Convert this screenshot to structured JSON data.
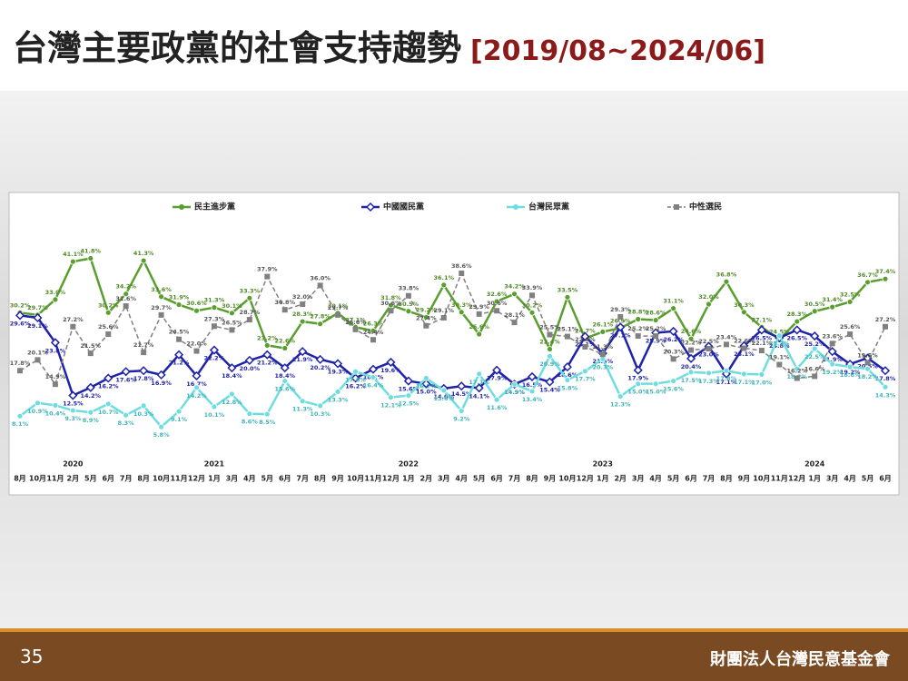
{
  "header": {
    "title": "台灣主要政黨的社會支持趨勢",
    "subtitle": "[2019/08~2024/06]"
  },
  "chart_data": {
    "type": "line",
    "categories": [
      "8月",
      "10月",
      "11月",
      "2月",
      "5月",
      "6月",
      "7月",
      "8月",
      "10月",
      "11月",
      "12月",
      "1月",
      "3月",
      "4月",
      "5月",
      "6月",
      "7月",
      "8月",
      "9月",
      "10月",
      "11月",
      "12月",
      "1月",
      "2月",
      "3月",
      "4月",
      "5月",
      "6月",
      "7月",
      "8月",
      "9月",
      "10月",
      "12月",
      "1月",
      "2月",
      "3月",
      "4月",
      "5月",
      "6月",
      "7月",
      "8月",
      "9月",
      "10月",
      "11月",
      "12月",
      "1月",
      "3月",
      "4月",
      "5月",
      "6月"
    ],
    "years": [
      null,
      null,
      null,
      "2020",
      null,
      null,
      null,
      null,
      null,
      null,
      null,
      "2021",
      null,
      null,
      null,
      null,
      null,
      null,
      null,
      null,
      null,
      null,
      "2022",
      null,
      null,
      null,
      null,
      null,
      null,
      null,
      null,
      null,
      null,
      "2023",
      null,
      null,
      null,
      null,
      null,
      null,
      null,
      null,
      null,
      null,
      null,
      "2024",
      null,
      null,
      null,
      null
    ],
    "ylim": [
      0,
      45
    ],
    "series": [
      {
        "name": "民主進步黨",
        "color": "#5a9e2f",
        "label_color": "#4f8a25",
        "marker": "circle",
        "dashed": false,
        "label_side": "above",
        "values": [
          30.2,
          29.7,
          33.0,
          41.1,
          41.8,
          30.2,
          34.2,
          41.3,
          33.6,
          31.9,
          30.6,
          31.3,
          30.1,
          33.3,
          23.2,
          22.6,
          28.3,
          27.8,
          30.1,
          27.1,
          26.3,
          31.8,
          30.5,
          29.2,
          36.1,
          30.3,
          25.6,
          32.6,
          34.2,
          30.2,
          22.4,
          33.5,
          24.7,
          26.1,
          26.9,
          28.8,
          28.6,
          31.1,
          24.6,
          32.0,
          36.8,
          30.3,
          27.1,
          24.5,
          28.3,
          30.5,
          31.4,
          32.5,
          36.7,
          37.4
        ],
        "value_labels": [
          "30.2%",
          "29.7%",
          "33.0%",
          "41.1%",
          "41.8%",
          "30.2%",
          "34.2%",
          "41.3%",
          "33.6%",
          "31.9%",
          "30.6%",
          "31.3%",
          "30.1%",
          "33.3%",
          "23.2%",
          "22.6%",
          "28.3%",
          "27.8%",
          "30.1%",
          "27.1%",
          "26.3%",
          "31.8%",
          "30.5%",
          "29.2%",
          "36.1%",
          "30.3%",
          "25.6%",
          "32.6%",
          "34.2%",
          "30.2%",
          "22.4%",
          "33.5%",
          "24.7%",
          "26.1%",
          "26.9%",
          "28.8%",
          "28.6%",
          "31.1%",
          "24.6%",
          "32.0%",
          "36.8%",
          "30.3%",
          "27.1%",
          "24.5%",
          "28.3%",
          "30.5%",
          "31.4%",
          "32.5%",
          "36.7%",
          "37.4%"
        ]
      },
      {
        "name": "中國國民黨",
        "color": "#1f23a8",
        "label_color": "#1f23a8",
        "marker": "diamond",
        "dashed": false,
        "label_side": "below",
        "values": [
          29.6,
          29.1,
          23.8,
          12.5,
          14.2,
          16.2,
          17.6,
          17.8,
          16.9,
          21.2,
          16.7,
          22.2,
          18.4,
          20.0,
          21.2,
          18.4,
          21.9,
          20.2,
          19.3,
          16.2,
          18.1,
          19.6,
          15.6,
          15.0,
          14.0,
          14.5,
          14.1,
          17.9,
          14.9,
          16.5,
          15.4,
          18.6,
          25.1,
          21.5,
          27.1,
          17.9,
          25.9,
          26.2,
          20.4,
          23.0,
          17.1,
          23.1,
          26.5,
          24.8,
          26.5,
          25.2,
          21.9,
          19.2,
          20.5,
          17.8
        ],
        "value_labels": [
          "29.6%",
          "29.1%",
          "23.8%",
          "12.5%",
          "14.2%",
          "16.2%",
          "17.6%",
          "17.8%",
          "16.9%",
          "21.2%",
          "16.7%",
          "22.2%",
          "18.4%",
          "20.0%",
          "21.2%",
          "18.4%",
          "21.9%",
          "20.2%",
          "19.3%",
          "16.2%",
          "18.1%",
          "19.6%",
          "15.6%",
          "15.0%",
          "14.0%",
          "14.5%",
          "14.1%",
          "17.9%",
          "14.9%",
          "16.5%",
          "15.4%",
          "18.6%",
          "25.1%",
          "21.5%",
          "27.1%",
          "17.9%",
          "25.9%",
          "26.2%",
          "20.4%",
          "23.0%",
          "17.1%",
          "23.1%",
          "26.5%",
          "24.8%",
          "26.5%",
          "25.2%",
          "21.9%",
          "19.2%",
          "20.5%",
          "17.8%"
        ]
      },
      {
        "name": "台灣民眾黨",
        "color": "#6fdde0",
        "label_color": "#3fb3b8",
        "marker": "circle",
        "dashed": false,
        "label_side": "below",
        "values": [
          8.1,
          10.9,
          10.4,
          9.3,
          8.9,
          10.7,
          8.3,
          10.3,
          5.8,
          9.1,
          14.2,
          10.1,
          12.8,
          8.6,
          8.5,
          15.6,
          11.3,
          10.3,
          13.3,
          17.6,
          16.4,
          12.1,
          12.5,
          16.2,
          13.6,
          9.2,
          17.1,
          11.6,
          14.9,
          13.4,
          20.9,
          15.8,
          17.7,
          20.3,
          12.3,
          15.0,
          15.0,
          15.6,
          17.5,
          17.3,
          17.8,
          17.1,
          17.0,
          25.3,
          18.2,
          22.5,
          19.2,
          18.6,
          18.2,
          14.3
        ],
        "value_labels": [
          "8.1%",
          "10.9%",
          "10.4%",
          "9.3%",
          "8.9%",
          "10.7%",
          "8.3%",
          "10.3%",
          "5.8%",
          "9.1%",
          "14.2%",
          "10.1%",
          "12.8%",
          "8.6%",
          "8.5%",
          "15.6%",
          "11.3%",
          "10.3%",
          "13.3%",
          "17.6%",
          "16.4%",
          "12.1%",
          "12.5%",
          "16.2%",
          "13.6%",
          "9.2%",
          "17.1%",
          "11.6%",
          "14.9%",
          "13.4%",
          "20.9%",
          "15.8%",
          "17.7%",
          "20.3%",
          "12.3%",
          "15.0%",
          "15.0%",
          "15.6%",
          "17.5%",
          "17.3%",
          "17.8%",
          "17.1%",
          "17.0%",
          "25.3%",
          "18.2%",
          "22.5%",
          "19.2%",
          "18.6%",
          "18.2%",
          "14.3%"
        ]
      },
      {
        "name": "中性選民",
        "color": "#808080",
        "label_color": "#555555",
        "marker": "square",
        "dashed": true,
        "label_side": "above",
        "values": [
          17.8,
          20.1,
          14.9,
          27.2,
          21.5,
          25.6,
          31.6,
          21.7,
          29.7,
          24.5,
          22.0,
          27.3,
          26.5,
          28.7,
          37.9,
          30.8,
          32.0,
          36.0,
          29.7,
          26.6,
          24.4,
          30.6,
          33.8,
          27.4,
          29.1,
          38.6,
          29.9,
          30.6,
          28.1,
          33.9,
          25.5,
          25.1,
          22.9,
          21.3,
          29.3,
          25.2,
          25.2,
          20.3,
          22.2,
          22.5,
          23.4,
          22.6,
          22.1,
          19.1,
          16.2,
          16.6,
          23.6,
          25.6,
          19.5,
          27.2
        ],
        "value_labels": [
          "17.8%",
          "20.1%",
          "14.9%",
          "27.2%",
          "21.5%",
          "25.6%",
          "31.6%",
          "21.7%",
          "29.7%",
          "24.5%",
          "22.0%",
          "27.3%",
          "26.5%",
          "28.7%",
          "37.9%",
          "30.8%",
          "32.0%",
          "36.0%",
          "29.7%",
          "26.6%",
          "24.4%",
          "30.6%",
          "33.8%",
          "27.4%",
          "29.1%",
          "38.6%",
          "29.9%",
          "30.6%",
          "28.1%",
          "33.9%",
          "25.5%",
          "25.1%",
          "22.9%",
          "21.3%",
          "29.3%",
          "25.2%",
          "25.2%",
          "20.3%",
          "22.2%",
          "22.5%",
          "23.4%",
          "22.6%",
          "22.1%",
          "19.1%",
          "16.2%",
          "16.6%",
          "23.6%",
          "25.6%",
          "19.5%",
          "27.2%"
        ]
      }
    ]
  },
  "footer": {
    "page_number": "35",
    "organization": "財團法人台灣民意基金會"
  }
}
